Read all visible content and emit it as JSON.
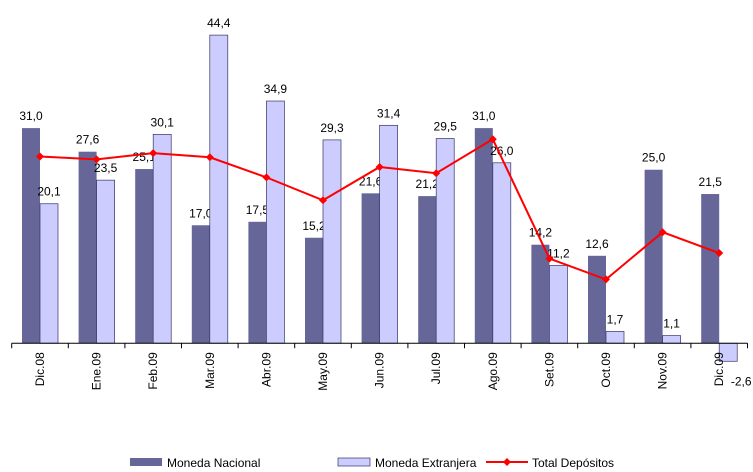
{
  "chart_data": {
    "type": "bar",
    "categories": [
      "Dic.08",
      "Ene.09",
      "Feb.09",
      "Mar.09",
      "Abr.09",
      "May.09",
      "Jun.09",
      "Jul.09",
      "Ago.09",
      "Set.09",
      "Oct.09",
      "Nov.09",
      "Dic.09"
    ],
    "series": [
      {
        "name": "Moneda Nacional",
        "type": "bar",
        "color": "#666699",
        "values": [
          31.0,
          27.6,
          25.1,
          17.0,
          17.5,
          15.2,
          21.6,
          21.2,
          31.0,
          14.2,
          12.6,
          25.0,
          21.5
        ],
        "value_labels": [
          "31,0",
          "27,6",
          "25,1",
          "17,0",
          "17,5",
          "15,2",
          "21,6",
          "21,2",
          "31,0",
          "14,2",
          "12,6",
          "25,0",
          "21,5"
        ]
      },
      {
        "name": "Moneda Extranjera",
        "type": "bar",
        "color": "#ccccff",
        "values": [
          20.1,
          23.5,
          30.1,
          44.4,
          34.9,
          29.3,
          31.4,
          29.5,
          26.0,
          11.2,
          1.7,
          1.1,
          -2.6
        ],
        "value_labels": [
          "20,1",
          "23,5",
          "30,1",
          "44,4",
          "34,9",
          "29,3",
          "31,4",
          "29,5",
          "26,0",
          "11,2",
          "1,7",
          "1,1",
          "-2,6"
        ]
      },
      {
        "name": "Total Depósitos",
        "type": "line",
        "color": "#ff0000",
        "values": [
          26.9,
          26.5,
          27.4,
          26.8,
          23.9,
          20.6,
          25.4,
          24.5,
          29.4,
          12.2,
          9.2,
          16.0,
          13.0
        ]
      }
    ],
    "ylim": [
      -4,
      46
    ]
  }
}
